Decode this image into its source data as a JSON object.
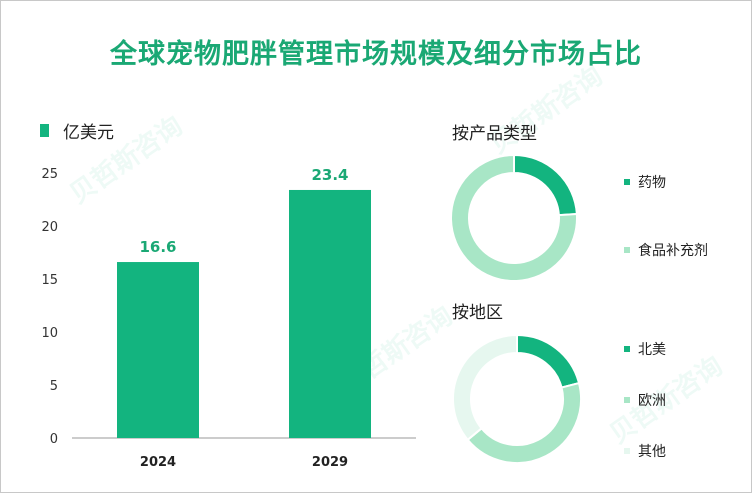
{
  "title": "全球宠物肥胖管理市场规模及细分市场占比",
  "unit_label": "亿美元",
  "colors": {
    "title": "#1aa874",
    "bar": "#13b47f",
    "dark": "#13b47f",
    "medium": "#a8e6c6",
    "light": "#e6f7ef"
  },
  "chart_data": [
    {
      "type": "bar",
      "categories": [
        "2024",
        "2029"
      ],
      "values": [
        16.6,
        23.4
      ],
      "ylabel": "亿美元",
      "ylim": [
        0,
        25
      ],
      "yticks": [
        0,
        5,
        10,
        15,
        20,
        25
      ],
      "data_labels": [
        "16.6",
        "23.4"
      ]
    },
    {
      "type": "pie",
      "title": "按产品类型",
      "labels": [
        "药物",
        "食品补充剂"
      ],
      "values": [
        24,
        76
      ]
    },
    {
      "type": "pie",
      "title": "按地区",
      "labels": [
        "北美",
        "欧洲",
        "其他"
      ],
      "values": [
        21,
        43,
        36
      ]
    }
  ]
}
